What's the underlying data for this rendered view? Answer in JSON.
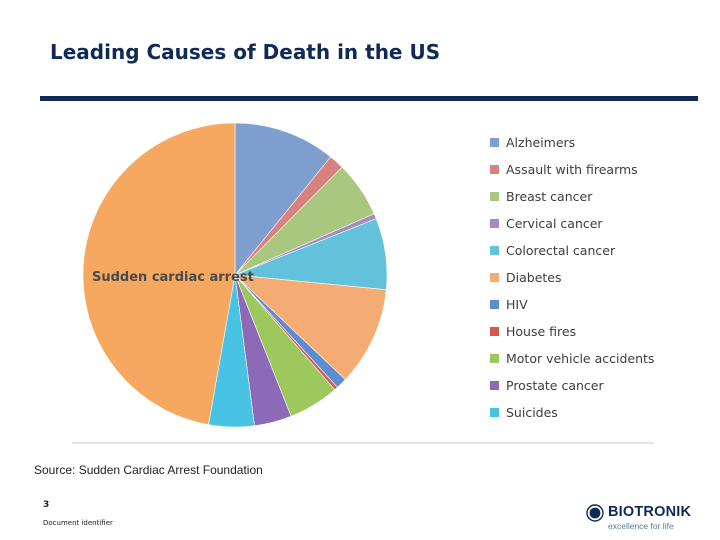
{
  "slide": {
    "title": "Leading Causes of Death in the US",
    "source": "Source: Sudden Cardiac Arrest Foundation",
    "page_number": "3",
    "document_identifier": "Document identifier",
    "brand": {
      "name": "BIOTRONIK",
      "tagline": "excellence for life",
      "color": "#0f2a55"
    }
  },
  "chart_data": {
    "type": "pie",
    "title": "",
    "slice_label": "Sudden cardiac arrest",
    "legend_position": "right",
    "slices": [
      {
        "label": "Alzheimers",
        "value": 74632,
        "color": "#7f9fd0"
      },
      {
        "label": "Assault with firearms",
        "value": 11078,
        "color": "#d9817c"
      },
      {
        "label": "Breast cancer",
        "value": 40970,
        "color": "#a9c77f"
      },
      {
        "label": "Cervical cancer",
        "value": 3870,
        "color": "#a38cc0"
      },
      {
        "label": "Colorectal cancer",
        "value": 52180,
        "color": "#62c2dc"
      },
      {
        "label": "Diabetes",
        "value": 72507,
        "color": "#f4ac72"
      },
      {
        "label": "HIV",
        "value": 8000,
        "color": "#5e8cd0"
      },
      {
        "label": "House fires",
        "value": 2580,
        "color": "#cf5b52"
      },
      {
        "label": "Motor vehicle accidents",
        "value": 37000,
        "color": "#9dc85e"
      },
      {
        "label": "Prostate cancer",
        "value": 27360,
        "color": "#8c6ab8"
      },
      {
        "label": "Suicides",
        "value": 33300,
        "color": "#48c3e3"
      },
      {
        "label": "Sudden cardiac arrest",
        "value": 325000,
        "color": "#f6a861"
      }
    ]
  }
}
